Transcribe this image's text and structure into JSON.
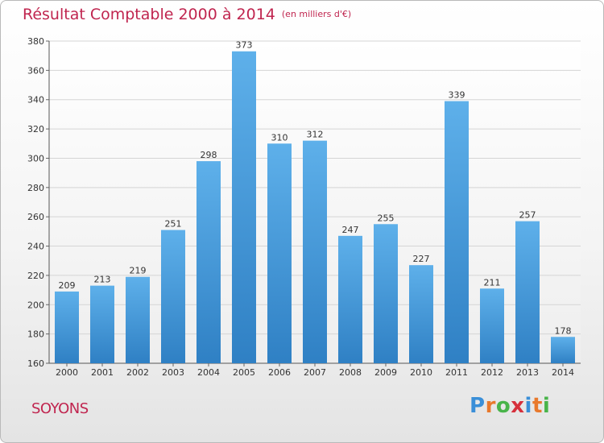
{
  "title": "Résultat Comptable 2000 à 2014",
  "unit": "(en milliers d'€)",
  "place": "SOYONS",
  "logo": {
    "letters": [
      "P",
      "r",
      "o",
      "x",
      "i",
      "t",
      "i"
    ],
    "colors": [
      "#3a8fd8",
      "#e8792c",
      "#49b44a",
      "#d6303c",
      "#3a8fd8",
      "#e8792c",
      "#49b44a"
    ]
  },
  "colors": {
    "bar_top": "#5eb0ea",
    "bar_bottom": "#2f80c4",
    "grid": "#d5d5d5",
    "title": "#c0254f"
  },
  "chart_data": {
    "type": "bar",
    "title": "Résultat Comptable 2000 à 2014",
    "xlabel": "",
    "ylabel": "",
    "categories": [
      "2000",
      "2001",
      "2002",
      "2003",
      "2004",
      "2005",
      "2006",
      "2007",
      "2008",
      "2009",
      "2010",
      "2011",
      "2012",
      "2013",
      "2014"
    ],
    "values": [
      209,
      213,
      219,
      251,
      298,
      373,
      310,
      312,
      247,
      255,
      227,
      339,
      211,
      257,
      178
    ],
    "ylim": [
      160,
      380
    ],
    "yticks": [
      160,
      180,
      200,
      220,
      240,
      260,
      280,
      300,
      320,
      340,
      360,
      380
    ],
    "grid": true
  }
}
